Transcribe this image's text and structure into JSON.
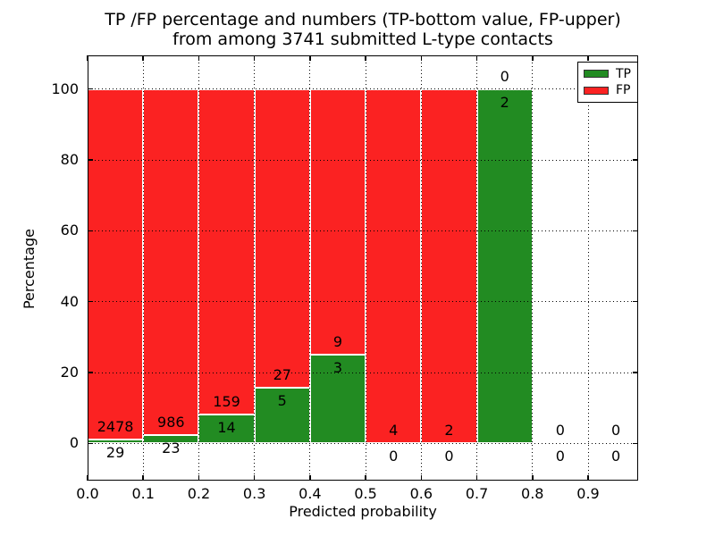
{
  "title": {
    "line1": "TP /FP percentage and numbers (TP-bottom value, FP-upper)",
    "line2": "from among 3741 submitted L-type contacts"
  },
  "chart_data": {
    "type": "bar",
    "stacked": true,
    "title": "TP /FP percentage and numbers (TP-bottom value, FP-upper) from among 3741 submitted L-type contacts",
    "xlabel": "Predicted probability",
    "ylabel": "Percentage",
    "xlim": [
      0,
      0.99
    ],
    "ylim": [
      -10.5,
      109.5
    ],
    "grid": true,
    "grid_style": "dotted",
    "legend_position": "upper right",
    "bar_edge_color": "#ffffff",
    "legend": [
      {
        "label": "TP",
        "color": "#228b22"
      },
      {
        "label": "FP",
        "color": "#fb2222"
      }
    ],
    "x_ticks": [
      {
        "v": 0.0,
        "label": "0.0"
      },
      {
        "v": 0.1,
        "label": "0.1"
      },
      {
        "v": 0.2,
        "label": "0.2"
      },
      {
        "v": 0.3,
        "label": "0.3"
      },
      {
        "v": 0.4,
        "label": "0.4"
      },
      {
        "v": 0.5,
        "label": "0.5"
      },
      {
        "v": 0.6,
        "label": "0.6"
      },
      {
        "v": 0.7,
        "label": "0.7"
      },
      {
        "v": 0.8,
        "label": "0.8"
      },
      {
        "v": 0.9,
        "label": "0.9"
      }
    ],
    "y_ticks": [
      {
        "v": 0,
        "label": "0"
      },
      {
        "v": 20,
        "label": "20"
      },
      {
        "v": 40,
        "label": "40"
      },
      {
        "v": 60,
        "label": "60"
      },
      {
        "v": 80,
        "label": "80"
      },
      {
        "v": 100,
        "label": "100"
      }
    ],
    "bins": [
      {
        "x0": 0.0,
        "x1": 0.1,
        "tp": 29,
        "fp": 2478,
        "tp_pct": 1.16,
        "fp_pct": 98.84
      },
      {
        "x0": 0.1,
        "x1": 0.2,
        "tp": 23,
        "fp": 986,
        "tp_pct": 2.28,
        "fp_pct": 97.72
      },
      {
        "x0": 0.2,
        "x1": 0.3,
        "tp": 14,
        "fp": 159,
        "tp_pct": 8.09,
        "fp_pct": 91.91
      },
      {
        "x0": 0.3,
        "x1": 0.4,
        "tp": 5,
        "fp": 27,
        "tp_pct": 15.63,
        "fp_pct": 84.37
      },
      {
        "x0": 0.4,
        "x1": 0.5,
        "tp": 3,
        "fp": 9,
        "tp_pct": 25.0,
        "fp_pct": 75.0
      },
      {
        "x0": 0.5,
        "x1": 0.6,
        "tp": 0,
        "fp": 4,
        "tp_pct": 0,
        "fp_pct": 100
      },
      {
        "x0": 0.6,
        "x1": 0.7,
        "tp": 0,
        "fp": 2,
        "tp_pct": 0,
        "fp_pct": 100
      },
      {
        "x0": 0.7,
        "x1": 0.8,
        "tp": 2,
        "fp": 0,
        "tp_pct": 100,
        "fp_pct": 0
      },
      {
        "x0": 0.8,
        "x1": 0.9,
        "tp": 0,
        "fp": 0,
        "tp_pct": 0,
        "fp_pct": 0
      },
      {
        "x0": 0.9,
        "x1": 1.0,
        "tp": 0,
        "fp": 0,
        "tp_pct": 0,
        "fp_pct": 0
      }
    ]
  }
}
